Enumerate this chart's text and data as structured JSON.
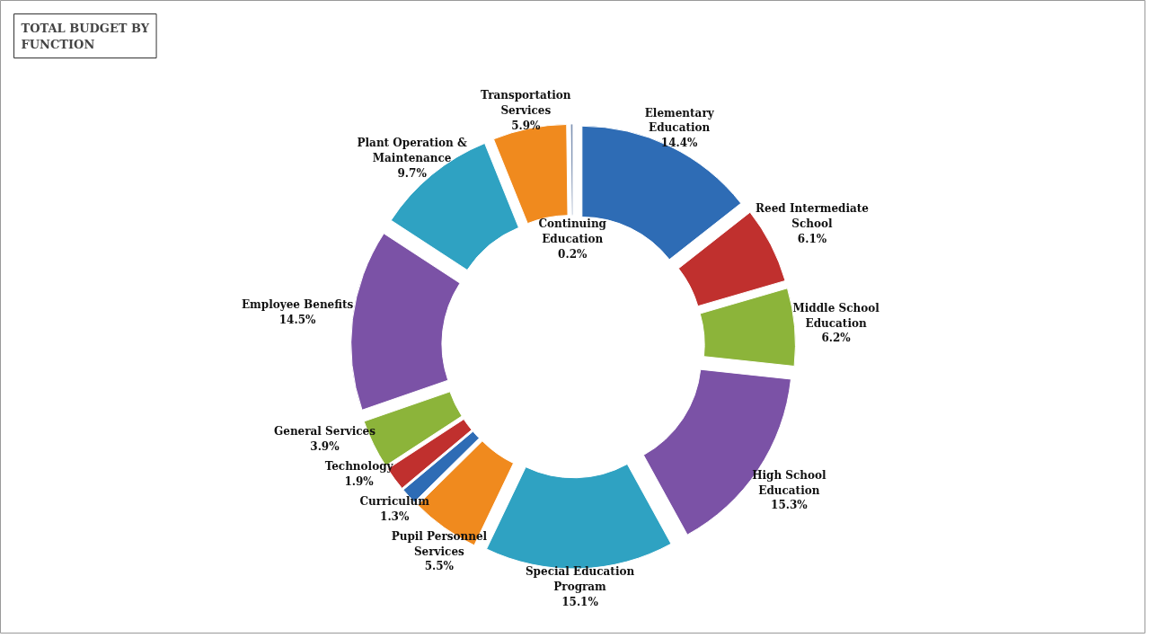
{
  "chart_data": {
    "type": "donut",
    "title": "TOTAL BUDGET BY FUNCTION",
    "categories": [
      "Elementary Education",
      "Reed Intermediate School",
      "Middle School Education",
      "High School Education",
      "Special Education Program",
      "Pupil Personnel Services",
      "Curriculum",
      "Technology",
      "General Services",
      "Employee Benefits",
      "Plant Operation & Maintenance",
      "Transportation Services",
      "Continuing Education"
    ],
    "values": [
      14.4,
      6.1,
      6.2,
      15.3,
      15.1,
      5.5,
      1.3,
      1.9,
      3.9,
      14.5,
      9.7,
      5.9,
      0.2
    ],
    "colors": [
      "#2e6cb5",
      "#c0302e",
      "#8cb43a",
      "#7b52a6",
      "#2fa2c2",
      "#f08a1e",
      "#2e6cb5",
      "#c0302e",
      "#8cb43a",
      "#7b52a6",
      "#2fa2c2",
      "#f08a1e",
      "#8094b4"
    ],
    "value_labels": [
      "14.4%",
      "6.1%",
      "6.2%",
      "15.3%",
      "15.1%",
      "5.5%",
      "1.3%",
      "1.9%",
      "3.9%",
      "14.5%",
      "9.7%",
      "5.9%",
      "0.2%"
    ]
  }
}
